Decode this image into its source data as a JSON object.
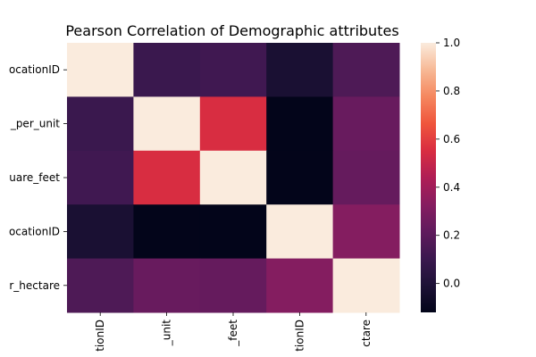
{
  "chart_data": {
    "type": "heatmap",
    "title": "Pearson Correlation of Demographic attributes",
    "row_labels": [
      "ocationID",
      "_per_unit",
      "uare_feet",
      "ocationID",
      "r_hectare"
    ],
    "col_labels": [
      "tionID",
      "_unit",
      "_feet",
      "tionID",
      "ctare"
    ],
    "values": [
      [
        1.0,
        0.1,
        0.12,
        -0.02,
        0.16
      ],
      [
        0.1,
        1.0,
        0.55,
        -0.12,
        0.24
      ],
      [
        0.12,
        0.55,
        1.0,
        -0.12,
        0.23
      ],
      [
        -0.02,
        -0.12,
        -0.12,
        1.0,
        0.32
      ],
      [
        0.16,
        0.24,
        0.23,
        0.32,
        1.0
      ]
    ],
    "colorbar": {
      "min": -0.12,
      "max": 1.0,
      "ticks": [
        0.0,
        0.2,
        0.4,
        0.6,
        0.8,
        1.0
      ],
      "tick_labels": [
        "0.0",
        "0.2",
        "0.4",
        "0.6",
        "0.8",
        "1.0"
      ],
      "colormap": "rocket"
    }
  }
}
